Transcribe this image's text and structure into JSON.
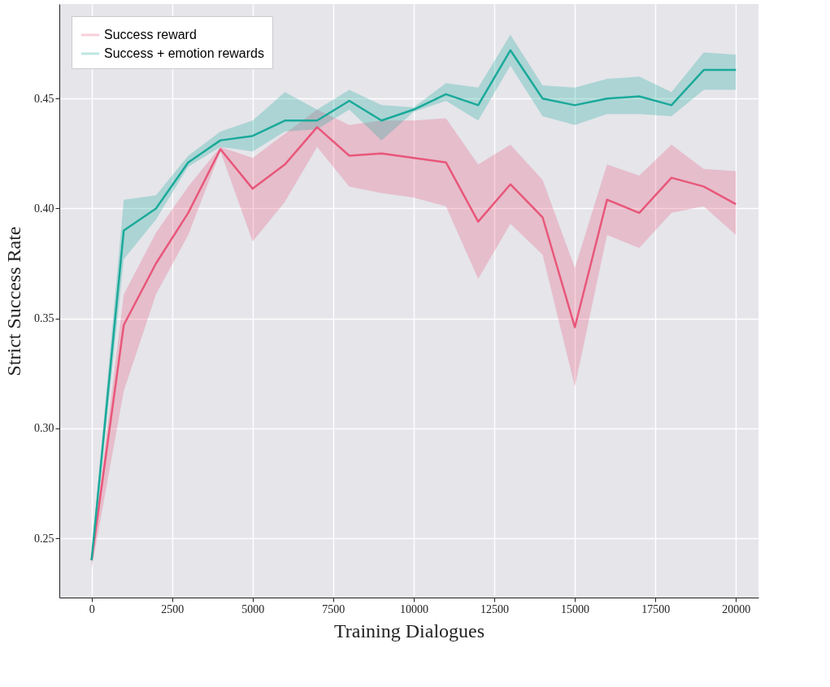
{
  "chart_data": {
    "type": "line",
    "xlabel": "Training Dialogues",
    "ylabel": "Strict Success Rate",
    "x": [
      0,
      1000,
      2000,
      3000,
      4000,
      5000,
      6000,
      7000,
      8000,
      9000,
      10000,
      11000,
      12000,
      13000,
      14000,
      15000,
      16000,
      17000,
      18000,
      19000,
      20000
    ],
    "series": [
      {
        "name": "Success reward",
        "color": "#e8577a",
        "values": [
          0.24,
          0.347,
          0.375,
          0.398,
          0.427,
          0.409,
          0.42,
          0.437,
          0.424,
          0.425,
          0.423,
          0.421,
          0.394,
          0.411,
          0.396,
          0.346,
          0.404,
          0.398,
          0.414,
          0.41,
          0.402
        ],
        "lower": [
          0.236,
          0.317,
          0.361,
          0.388,
          0.426,
          0.385,
          0.403,
          0.428,
          0.41,
          0.407,
          0.405,
          0.401,
          0.368,
          0.393,
          0.379,
          0.319,
          0.388,
          0.382,
          0.398,
          0.401,
          0.388
        ],
        "upper": [
          0.242,
          0.361,
          0.389,
          0.41,
          0.428,
          0.423,
          0.434,
          0.445,
          0.438,
          0.44,
          0.44,
          0.441,
          0.42,
          0.429,
          0.413,
          0.373,
          0.42,
          0.415,
          0.429,
          0.418,
          0.417
        ]
      },
      {
        "name": "Success + emotion rewards",
        "color": "#1aa99a",
        "values": [
          0.24,
          0.39,
          0.4,
          0.421,
          0.431,
          0.433,
          0.44,
          0.44,
          0.449,
          0.44,
          0.445,
          0.452,
          0.447,
          0.472,
          0.45,
          0.447,
          0.45,
          0.451,
          0.447,
          0.463,
          0.463
        ],
        "lower": [
          0.238,
          0.377,
          0.395,
          0.419,
          0.428,
          0.426,
          0.435,
          0.436,
          0.445,
          0.431,
          0.444,
          0.449,
          0.44,
          0.465,
          0.442,
          0.438,
          0.443,
          0.443,
          0.442,
          0.454,
          0.454
        ],
        "upper": [
          0.242,
          0.404,
          0.406,
          0.424,
          0.435,
          0.44,
          0.453,
          0.445,
          0.454,
          0.447,
          0.446,
          0.457,
          0.455,
          0.479,
          0.456,
          0.455,
          0.459,
          0.46,
          0.453,
          0.471,
          0.47
        ]
      }
    ],
    "xlim": [
      -1000,
      20700
    ],
    "ylim": [
      0.223,
      0.493
    ],
    "xticks": [
      0,
      2500,
      5000,
      7500,
      10000,
      12500,
      15000,
      17500,
      20000
    ],
    "yticks": [
      {
        "value": 0.25,
        "label": "0.25"
      },
      {
        "value": 0.3,
        "label": "0.30"
      },
      {
        "value": 0.35,
        "label": "0.35"
      },
      {
        "value": 0.4,
        "label": "0.40"
      },
      {
        "value": 0.45,
        "label": "0.45"
      }
    ],
    "grid": true,
    "legend": "top left",
    "line_style": "solid",
    "marker": "none"
  }
}
